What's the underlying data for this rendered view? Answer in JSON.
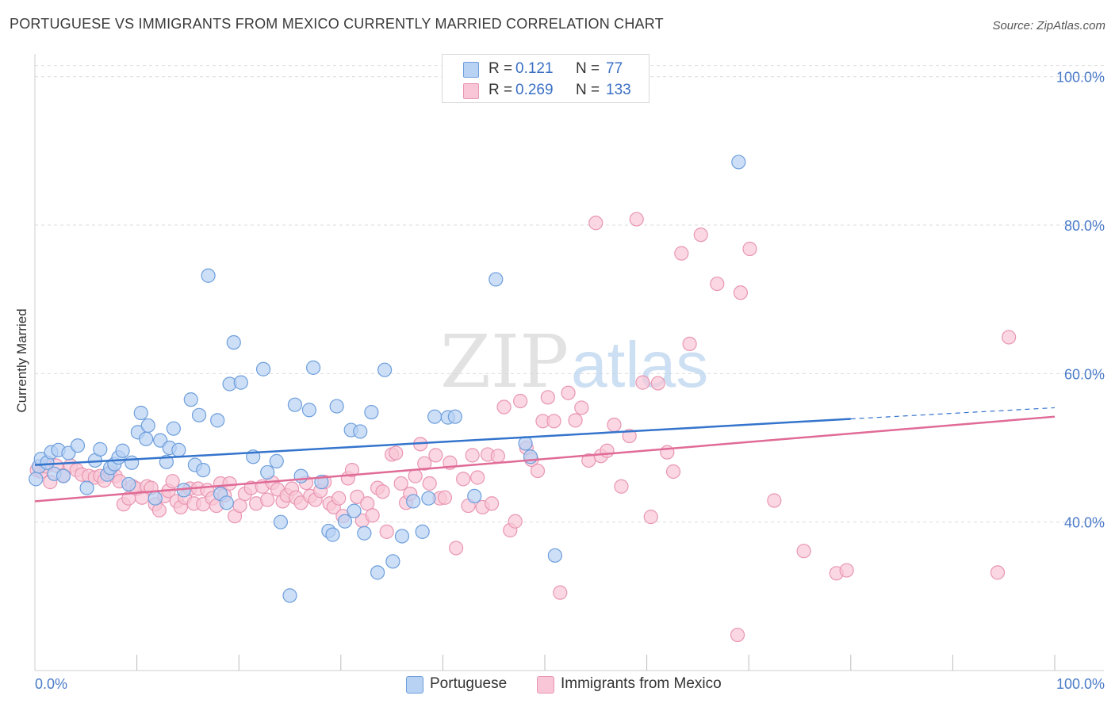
{
  "title": "PORTUGUESE VS IMMIGRANTS FROM MEXICO CURRENTLY MARRIED CORRELATION CHART",
  "source": "Source: ZipAtlas.com",
  "watermark": {
    "zip": "ZIP",
    "atlas": "atlas"
  },
  "colors": {
    "blue_fill": "#b8d2f4",
    "blue_stroke": "#6d9edc",
    "blue_line": "#3474cc",
    "pink_fill": "#f8c6d6",
    "pink_stroke": "#e996b2",
    "pink_line": "#e06b96",
    "tick_text": "#4a7bc8",
    "grid": "#dcdcdc"
  },
  "legend": {
    "rows": [
      {
        "r_label": "R =",
        "r_value": "0.121",
        "n_label": "N =",
        "n_value": "77"
      },
      {
        "r_label": "R =",
        "r_value": "0.269",
        "n_label": "N =",
        "n_value": "133"
      }
    ]
  },
  "chart_data": {
    "type": "scatter",
    "title": "PORTUGUESE VS IMMIGRANTS FROM MEXICO CURRENTLY MARRIED CORRELATION CHART",
    "xlabel": "",
    "ylabel": "Currently Married",
    "xlim": [
      0,
      100
    ],
    "ylim": [
      20,
      102
    ],
    "x_tick_labels": [
      "0.0%",
      "100.0%"
    ],
    "y_ticks": [
      40,
      60,
      80,
      100
    ],
    "y_tick_labels": [
      "40.0%",
      "60.0%",
      "80.0%",
      "100.0%"
    ],
    "grid": true,
    "legend_position": "bottom",
    "series": [
      {
        "name": "Portuguese",
        "color": "#6d9edc",
        "trend": {
          "x": [
            0,
            80
          ],
          "y": [
            47.7,
            53.9
          ],
          "dashed_x": [
            80,
            100
          ],
          "dashed_y": [
            53.9,
            55.4
          ]
        },
        "points": [
          [
            0.1,
            45.8
          ],
          [
            0.4,
            47.5
          ],
          [
            0.6,
            48.5
          ],
          [
            1.2,
            48.0
          ],
          [
            1.6,
            49.4
          ],
          [
            1.9,
            46.5
          ],
          [
            2.3,
            49.7
          ],
          [
            2.8,
            46.2
          ],
          [
            3.3,
            49.3
          ],
          [
            4.2,
            50.3
          ],
          [
            5.1,
            44.6
          ],
          [
            5.9,
            48.3
          ],
          [
            6.4,
            49.8
          ],
          [
            7.1,
            46.4
          ],
          [
            7.4,
            47.3
          ],
          [
            7.8,
            47.8
          ],
          [
            8.2,
            48.7
          ],
          [
            8.6,
            49.6
          ],
          [
            9.2,
            45.1
          ],
          [
            9.5,
            48.0
          ],
          [
            10.1,
            52.1
          ],
          [
            10.4,
            54.7
          ],
          [
            10.9,
            51.2
          ],
          [
            11.1,
            53.0
          ],
          [
            11.8,
            43.2
          ],
          [
            12.3,
            51.0
          ],
          [
            12.9,
            48.1
          ],
          [
            13.2,
            50.0
          ],
          [
            13.6,
            52.6
          ],
          [
            14.1,
            49.7
          ],
          [
            14.6,
            44.3
          ],
          [
            15.3,
            56.5
          ],
          [
            15.7,
            47.7
          ],
          [
            16.1,
            54.4
          ],
          [
            16.5,
            47.0
          ],
          [
            17.0,
            73.2
          ],
          [
            17.9,
            53.7
          ],
          [
            18.2,
            43.8
          ],
          [
            18.8,
            42.6
          ],
          [
            19.1,
            58.6
          ],
          [
            19.5,
            64.2
          ],
          [
            20.2,
            58.8
          ],
          [
            21.4,
            48.8
          ],
          [
            22.4,
            60.6
          ],
          [
            22.8,
            46.7
          ],
          [
            23.7,
            48.2
          ],
          [
            24.1,
            40.0
          ],
          [
            25.0,
            30.1
          ],
          [
            25.5,
            55.8
          ],
          [
            26.1,
            46.2
          ],
          [
            26.9,
            55.1
          ],
          [
            27.3,
            60.8
          ],
          [
            28.1,
            45.4
          ],
          [
            28.8,
            38.8
          ],
          [
            29.2,
            38.3
          ],
          [
            29.6,
            55.6
          ],
          [
            30.4,
            40.1
          ],
          [
            31.0,
            52.4
          ],
          [
            31.3,
            41.5
          ],
          [
            31.9,
            52.2
          ],
          [
            32.3,
            38.5
          ],
          [
            33.0,
            54.8
          ],
          [
            33.6,
            33.2
          ],
          [
            34.3,
            60.5
          ],
          [
            35.1,
            34.7
          ],
          [
            36.0,
            38.1
          ],
          [
            37.1,
            42.8
          ],
          [
            38.0,
            38.7
          ],
          [
            38.6,
            43.2
          ],
          [
            39.2,
            54.2
          ],
          [
            40.5,
            54.1
          ],
          [
            41.2,
            54.2
          ],
          [
            43.1,
            43.5
          ],
          [
            45.2,
            72.7
          ],
          [
            48.1,
            50.6
          ],
          [
            48.6,
            48.8
          ],
          [
            51.0,
            35.5
          ],
          [
            69.0,
            88.5
          ]
        ]
      },
      {
        "name": "Immigrants from Mexico",
        "color": "#e996b2",
        "trend": {
          "x": [
            0,
            100
          ],
          "y": [
            42.8,
            54.2
          ]
        },
        "points": [
          [
            0.2,
            47.0
          ],
          [
            0.6,
            46.8
          ],
          [
            1.1,
            47.5
          ],
          [
            1.5,
            45.4
          ],
          [
            2.1,
            47.6
          ],
          [
            2.8,
            46.3
          ],
          [
            3.5,
            47.6
          ],
          [
            4.1,
            47.0
          ],
          [
            4.6,
            46.4
          ],
          [
            5.3,
            46.2
          ],
          [
            5.9,
            46.0
          ],
          [
            6.4,
            46.2
          ],
          [
            6.8,
            45.6
          ],
          [
            7.4,
            46.7
          ],
          [
            7.9,
            46.2
          ],
          [
            8.3,
            45.5
          ],
          [
            8.7,
            42.4
          ],
          [
            9.2,
            43.2
          ],
          [
            9.6,
            44.8
          ],
          [
            10.0,
            44.5
          ],
          [
            10.5,
            43.3
          ],
          [
            11.0,
            44.8
          ],
          [
            11.4,
            44.6
          ],
          [
            11.8,
            42.4
          ],
          [
            12.2,
            41.6
          ],
          [
            12.7,
            43.5
          ],
          [
            13.1,
            44.2
          ],
          [
            13.5,
            45.5
          ],
          [
            13.9,
            42.8
          ],
          [
            14.3,
            42.0
          ],
          [
            14.7,
            43.3
          ],
          [
            15.2,
            44.5
          ],
          [
            15.6,
            42.5
          ],
          [
            16.0,
            44.5
          ],
          [
            16.5,
            42.4
          ],
          [
            16.9,
            44.3
          ],
          [
            17.4,
            43.2
          ],
          [
            17.8,
            42.2
          ],
          [
            18.2,
            45.2
          ],
          [
            18.6,
            43.6
          ],
          [
            19.1,
            45.2
          ],
          [
            19.6,
            40.8
          ],
          [
            20.1,
            42.2
          ],
          [
            20.6,
            43.8
          ],
          [
            21.2,
            44.6
          ],
          [
            21.7,
            42.5
          ],
          [
            22.3,
            44.8
          ],
          [
            22.8,
            43.0
          ],
          [
            23.3,
            45.3
          ],
          [
            23.8,
            44.4
          ],
          [
            24.3,
            42.8
          ],
          [
            24.7,
            43.6
          ],
          [
            25.2,
            44.5
          ],
          [
            25.6,
            43.3
          ],
          [
            26.1,
            42.6
          ],
          [
            26.6,
            45.3
          ],
          [
            27.0,
            43.5
          ],
          [
            27.5,
            43.0
          ],
          [
            28.0,
            44.2
          ],
          [
            28.4,
            45.4
          ],
          [
            28.9,
            42.5
          ],
          [
            29.3,
            42.0
          ],
          [
            29.8,
            43.2
          ],
          [
            30.2,
            40.8
          ],
          [
            30.7,
            45.9
          ],
          [
            31.1,
            47.0
          ],
          [
            31.6,
            43.4
          ],
          [
            32.1,
            40.2
          ],
          [
            32.6,
            42.5
          ],
          [
            33.1,
            40.9
          ],
          [
            33.6,
            44.6
          ],
          [
            34.1,
            44.1
          ],
          [
            34.5,
            38.7
          ],
          [
            35.0,
            49.1
          ],
          [
            35.4,
            49.3
          ],
          [
            35.9,
            45.2
          ],
          [
            36.4,
            42.6
          ],
          [
            36.8,
            43.8
          ],
          [
            37.3,
            46.2
          ],
          [
            37.8,
            50.5
          ],
          [
            38.2,
            47.9
          ],
          [
            38.7,
            45.2
          ],
          [
            39.3,
            49.0
          ],
          [
            39.7,
            43.2
          ],
          [
            40.2,
            43.3
          ],
          [
            40.7,
            48.0
          ],
          [
            41.3,
            36.5
          ],
          [
            42.0,
            45.8
          ],
          [
            42.5,
            42.2
          ],
          [
            42.9,
            49.0
          ],
          [
            43.4,
            46.0
          ],
          [
            43.9,
            42.0
          ],
          [
            44.4,
            49.1
          ],
          [
            44.8,
            42.5
          ],
          [
            45.4,
            48.9
          ],
          [
            46.0,
            55.5
          ],
          [
            46.6,
            38.9
          ],
          [
            47.1,
            40.1
          ],
          [
            47.6,
            56.3
          ],
          [
            48.2,
            50.0
          ],
          [
            48.7,
            48.4
          ],
          [
            49.3,
            46.9
          ],
          [
            49.8,
            53.6
          ],
          [
            50.3,
            56.8
          ],
          [
            50.9,
            53.6
          ],
          [
            51.5,
            30.5
          ],
          [
            52.3,
            57.4
          ],
          [
            53.0,
            53.7
          ],
          [
            53.6,
            55.4
          ],
          [
            54.3,
            48.3
          ],
          [
            55.0,
            80.3
          ],
          [
            55.5,
            48.9
          ],
          [
            56.1,
            49.6
          ],
          [
            56.8,
            53.1
          ],
          [
            57.5,
            44.8
          ],
          [
            58.3,
            51.6
          ],
          [
            59.0,
            80.8
          ],
          [
            59.6,
            58.8
          ],
          [
            60.4,
            40.7
          ],
          [
            61.1,
            58.7
          ],
          [
            62.0,
            49.4
          ],
          [
            62.6,
            46.8
          ],
          [
            63.4,
            76.2
          ],
          [
            64.2,
            64.0
          ],
          [
            65.3,
            78.7
          ],
          [
            66.9,
            72.1
          ],
          [
            68.9,
            24.8
          ],
          [
            69.2,
            70.9
          ],
          [
            70.1,
            76.8
          ],
          [
            72.5,
            42.9
          ],
          [
            75.4,
            36.1
          ],
          [
            78.6,
            33.1
          ],
          [
            79.6,
            33.5
          ],
          [
            94.4,
            33.2
          ],
          [
            95.5,
            64.9
          ]
        ]
      }
    ]
  },
  "bottom_legend": {
    "blue_label": "Portuguese",
    "pink_label": "Immigrants from Mexico"
  }
}
